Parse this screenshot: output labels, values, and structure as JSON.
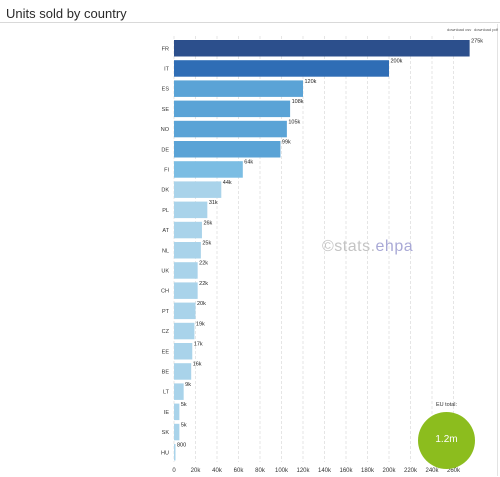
{
  "title": "Units sold by country",
  "downloads": {
    "csv": "download csv",
    "pdf": "download pdf"
  },
  "watermark": {
    "part1": "©stats.",
    "part2": "ehpa"
  },
  "eu_total": {
    "label": "EU total:",
    "value": "1.2m"
  },
  "colors": {
    "dark": "#2c4f8c",
    "mid_dark": "#2f6db5",
    "mid": "#5aa3d6",
    "light": "#7bbde3",
    "lightest": "#a9d3ea",
    "total_circle": "#8cbd1e"
  },
  "chart_data": {
    "type": "bar",
    "orientation": "horizontal",
    "title": "Units sold by country",
    "xlabel": "",
    "ylabel": "",
    "xlim": [
      0,
      280000
    ],
    "grid": true,
    "x_ticks": [
      0,
      20000,
      40000,
      60000,
      80000,
      100000,
      120000,
      140000,
      160000,
      180000,
      200000,
      220000,
      240000,
      260000
    ],
    "x_tick_labels": [
      "0",
      "20k",
      "40k",
      "60k",
      "80k",
      "100k",
      "120k",
      "140k",
      "160k",
      "180k",
      "200k",
      "220k",
      "240k",
      "260k"
    ],
    "categories": [
      "FR",
      "IT",
      "ES",
      "SE",
      "NO",
      "DE",
      "FI",
      "DK",
      "PL",
      "AT",
      "NL",
      "UK",
      "CH",
      "PT",
      "CZ",
      "EE",
      "BE",
      "LT",
      "IE",
      "SK",
      "HU"
    ],
    "values": [
      275000,
      200000,
      120000,
      108000,
      105000,
      99000,
      64000,
      44000,
      31000,
      26000,
      25000,
      22000,
      22000,
      20000,
      19000,
      17000,
      16000,
      9000,
      5000,
      5000,
      800
    ],
    "value_labels": [
      "275k",
      "200k",
      "120k",
      "108k",
      "105k",
      "99k",
      "64k",
      "44k",
      "31k",
      "26k",
      "25k",
      "22k",
      "22k",
      "20k",
      "19k",
      "17k",
      "16k",
      "9k",
      "5k",
      "5k",
      "800"
    ],
    "color_groups": [
      "dark",
      "mid_dark",
      "mid",
      "mid",
      "mid",
      "mid",
      "light",
      "lightest",
      "lightest",
      "lightest",
      "lightest",
      "lightest",
      "lightest",
      "lightest",
      "lightest",
      "lightest",
      "lightest",
      "lightest",
      "lightest",
      "lightest",
      "lightest"
    ]
  }
}
